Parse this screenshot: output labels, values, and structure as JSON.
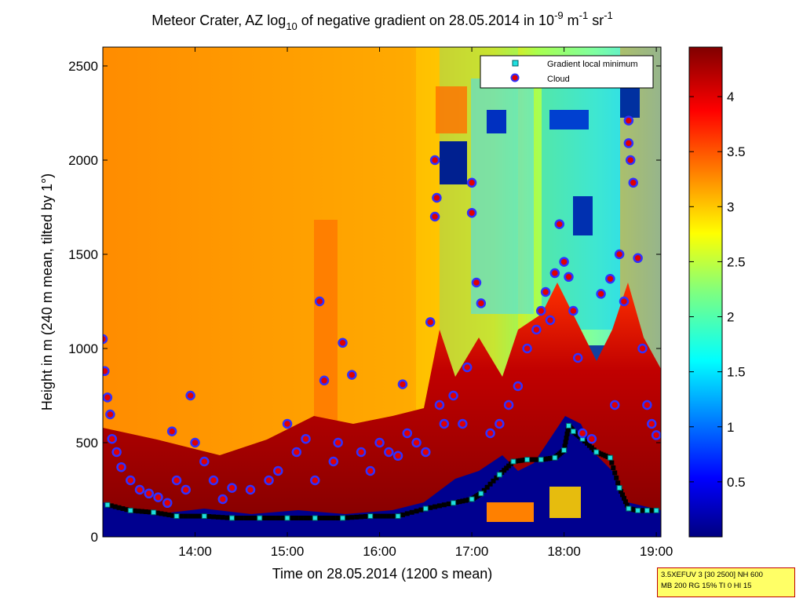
{
  "chart_data": {
    "type": "heatmap",
    "title_main": "Meteor Crater, AZ log",
    "title_sub10": "10",
    "title_rest": " of negative gradient on 28.05.2014 in 10",
    "title_exp1": "-9",
    "title_unit_m": " m",
    "title_exp2": "-1",
    "title_unit_sr": " sr",
    "title_exp3": "-1",
    "xlabel": "Time on 28.05.2014 (1200 s mean)",
    "ylabel": "Height in m (240 m mean, tilted by 1°)",
    "xlim_hours": [
      13.0,
      19.05
    ],
    "ylim": [
      0,
      2600
    ],
    "x_ticks": [
      {
        "label": "14:00",
        "hours": 14
      },
      {
        "label": "15:00",
        "hours": 15
      },
      {
        "label": "16:00",
        "hours": 16
      },
      {
        "label": "17:00",
        "hours": 17
      },
      {
        "label": "18:00",
        "hours": 18
      },
      {
        "label": "19:00",
        "hours": 19
      }
    ],
    "y_ticks": [
      0,
      500,
      1000,
      1500,
      2000,
      2500
    ],
    "colorbar": {
      "range": [
        0,
        4.45
      ],
      "ticks": [
        "0.5",
        "1",
        "1.5",
        "2",
        "2.5",
        "3",
        "3.5",
        "4"
      ],
      "colormap": "jet"
    },
    "legend": {
      "placement": "top-right",
      "entries": [
        "Gradient local minimum",
        "Cloud"
      ]
    },
    "series": [
      {
        "name": "Gradient local minimum",
        "marker": "square",
        "color": "#00ffff",
        "hours": [
          13.05,
          13.3,
          13.55,
          13.8,
          14.1,
          14.4,
          14.7,
          15.0,
          15.3,
          15.6,
          15.9,
          16.2,
          16.5,
          16.8,
          17.0,
          17.1,
          17.3,
          17.45,
          17.6,
          17.75,
          17.9,
          18.0,
          18.05,
          18.1,
          18.2,
          18.35,
          18.5,
          18.6,
          18.7,
          18.8,
          18.9,
          19.0
        ],
        "heights": [
          170,
          140,
          130,
          110,
          110,
          100,
          100,
          100,
          100,
          100,
          110,
          110,
          150,
          180,
          200,
          230,
          330,
          400,
          410,
          410,
          420,
          460,
          590,
          560,
          520,
          450,
          420,
          260,
          150,
          140,
          140,
          140
        ]
      },
      {
        "name": "Cloud",
        "marker": "circle",
        "color": "#ff0000",
        "hours": [
          13.0,
          13.02,
          13.05,
          13.08,
          13.1,
          13.15,
          13.2,
          13.3,
          13.4,
          13.5,
          13.6,
          13.7,
          13.75,
          13.8,
          13.9,
          13.95,
          14.0,
          14.1,
          14.2,
          14.3,
          14.4,
          14.6,
          14.8,
          14.9,
          15.0,
          15.1,
          15.2,
          15.3,
          15.35,
          15.4,
          15.5,
          15.55,
          15.6,
          15.7,
          15.8,
          15.9,
          16.0,
          16.1,
          16.2,
          16.25,
          16.3,
          16.4,
          16.5,
          16.55,
          16.6,
          16.6,
          16.62,
          16.65,
          16.7,
          16.8,
          16.9,
          16.95,
          17.0,
          17.0,
          17.05,
          17.1,
          17.2,
          17.3,
          17.4,
          17.5,
          17.6,
          17.7,
          17.75,
          17.8,
          17.85,
          17.9,
          17.95,
          18.0,
          18.05,
          18.1,
          18.15,
          18.2,
          18.3,
          18.4,
          18.5,
          18.55,
          18.6,
          18.65,
          18.7,
          18.7,
          18.72,
          18.75,
          18.8,
          18.85,
          18.9,
          18.95,
          19.0
        ],
        "heights": [
          1050,
          880,
          740,
          650,
          520,
          450,
          370,
          300,
          250,
          230,
          210,
          180,
          560,
          300,
          250,
          750,
          500,
          400,
          300,
          200,
          260,
          250,
          300,
          350,
          600,
          450,
          520,
          300,
          1250,
          830,
          400,
          500,
          1030,
          860,
          450,
          350,
          500,
          450,
          430,
          810,
          550,
          500,
          450,
          1140,
          1700,
          2000,
          1800,
          700,
          600,
          750,
          600,
          900,
          1880,
          1720,
          1350,
          1240,
          550,
          600,
          700,
          800,
          1000,
          1100,
          1200,
          1300,
          1150,
          1400,
          1660,
          1460,
          1380,
          1200,
          950,
          550,
          520,
          1290,
          1370,
          700,
          1500,
          1250,
          2210,
          2090,
          2000,
          1880,
          1480,
          1000,
          700,
          600,
          540
        ]
      }
    ]
  },
  "info_box": {
    "line1": "3.5XEFUV 3 [30 2500] NH 600",
    "line2": "MB 200 RG 15% TI 0 HI 15"
  }
}
